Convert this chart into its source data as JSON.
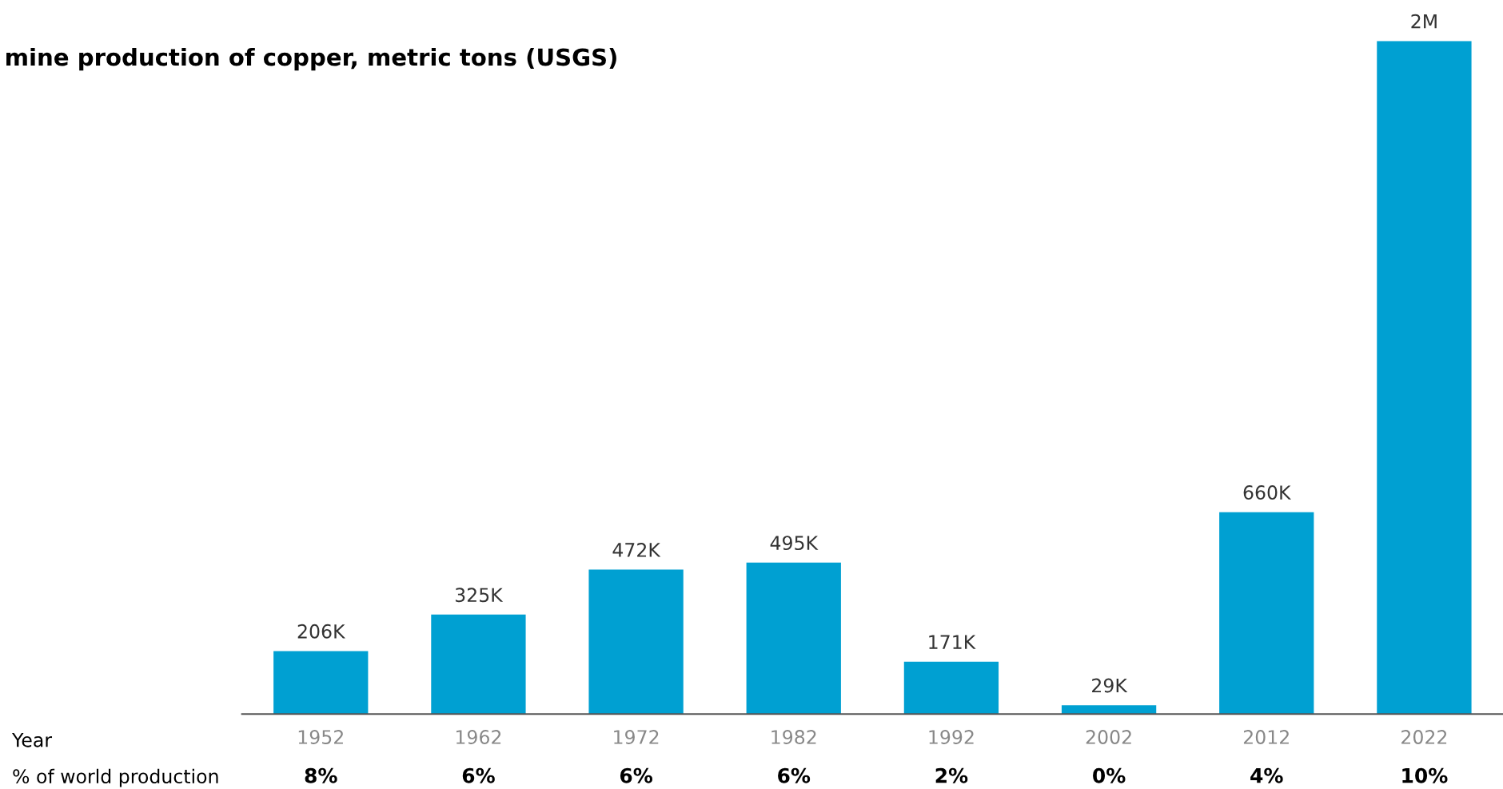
{
  "chart_data": {
    "type": "bar",
    "title": "mine production of copper, metric tons (USGS)",
    "categories": [
      "1952",
      "1962",
      "1972",
      "1982",
      "1992",
      "2002",
      "2012",
      "2022"
    ],
    "values": [
      206000,
      325000,
      472000,
      495000,
      171000,
      29000,
      660000,
      2200000
    ],
    "value_labels": [
      "206K",
      "325K",
      "472K",
      "495K",
      "171K",
      "29K",
      "660K",
      "2M"
    ],
    "color": "#00a0d2",
    "annotations": [
      "Year",
      "% of world production",
      "8%",
      "6%",
      "6%",
      "6%",
      "2%",
      "0%",
      "4%",
      "10%"
    ],
    "grid": false,
    "legend": false
  }
}
